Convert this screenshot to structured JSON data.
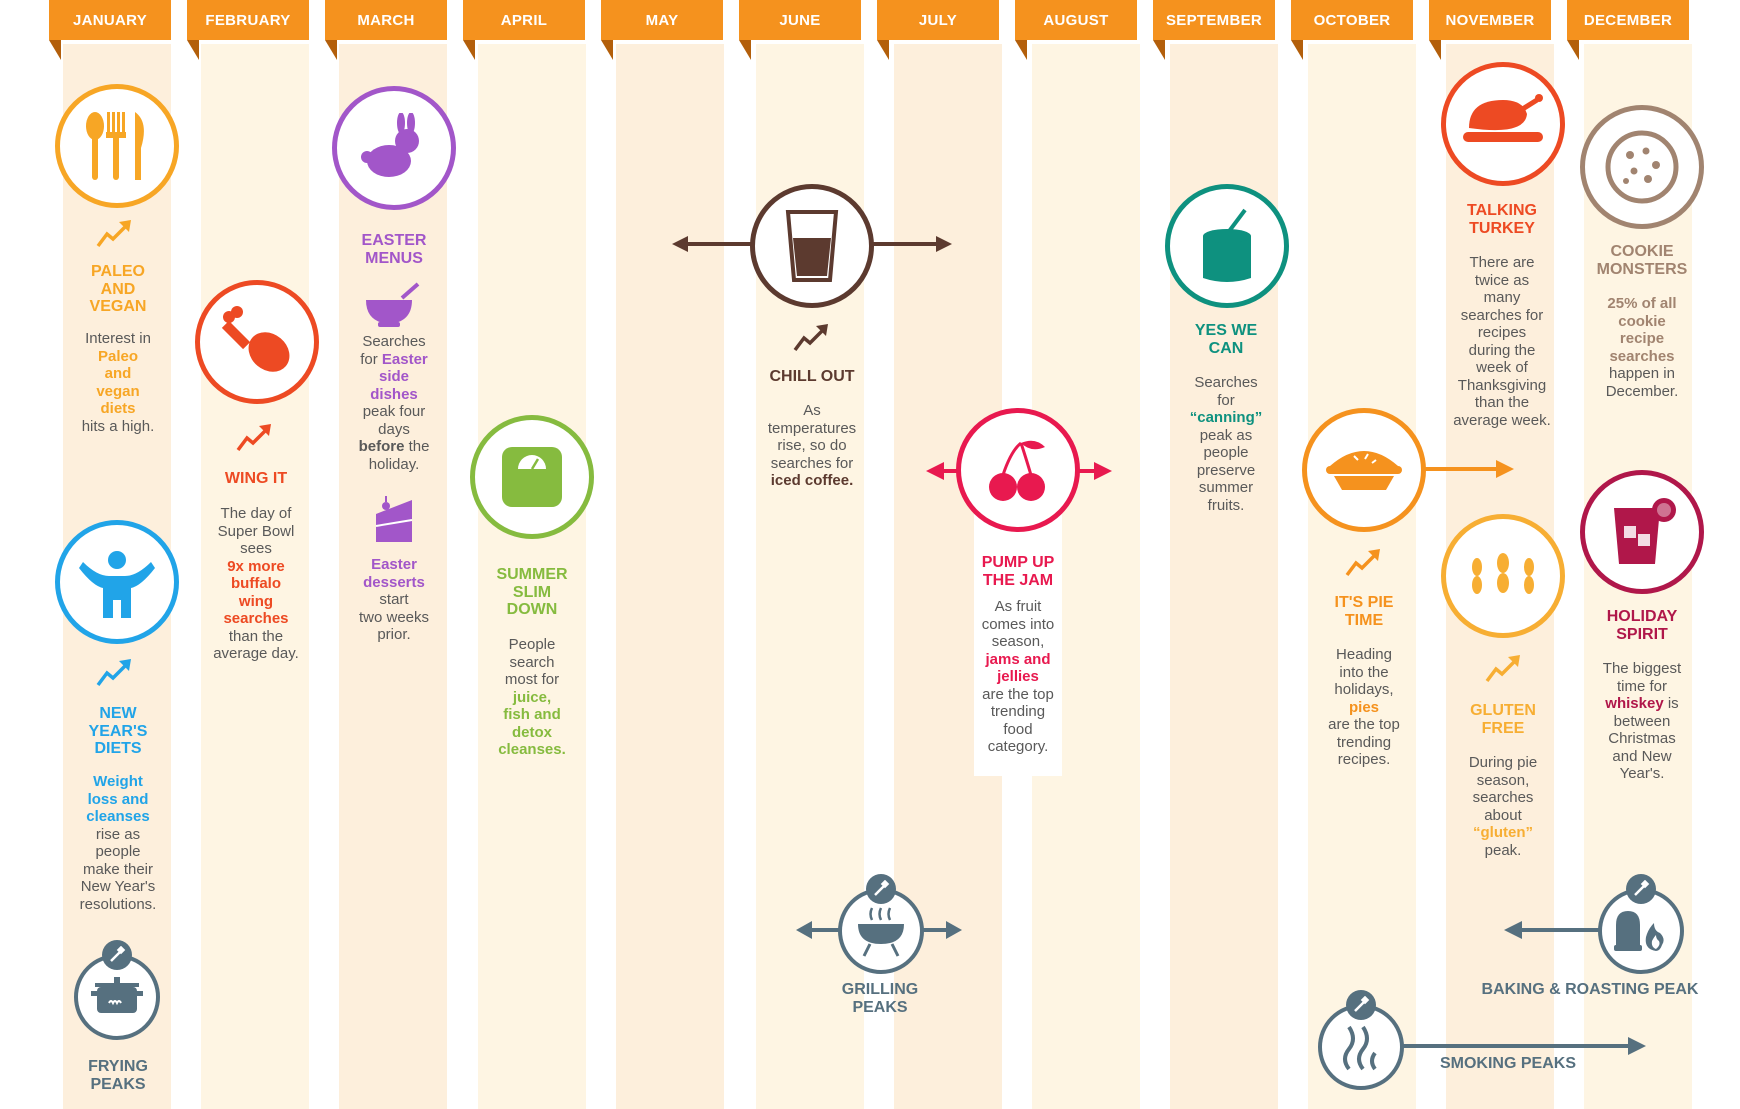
{
  "colors": {
    "orange": "#f5921e",
    "red": "#ed4a23",
    "purple": "#a256c9",
    "green": "#86bb3f",
    "brown": "#5c3a2f",
    "pink": "#e8194f",
    "teal": "#0e917f",
    "yellow": "#f7ae33",
    "tan": "#a18470",
    "maroon": "#b0174a",
    "blue": "#21a4e8",
    "slate": "#56707f"
  },
  "months": [
    "JANUARY",
    "FEBRUARY",
    "MARCH",
    "APRIL",
    "MAY",
    "JUNE",
    "JULY",
    "AUGUST",
    "SEPTEMBER",
    "OCTOBER",
    "NOVEMBER",
    "DECEMBER"
  ],
  "paleo": {
    "title_1": "PALEO",
    "title_2": "AND",
    "title_3": "VEGAN",
    "t1": "Interest in",
    "h1": "Paleo",
    "h2": "and",
    "h3": "vegan",
    "h4": "diets",
    "t2": "hits a high."
  },
  "newyear": {
    "title_1": "NEW",
    "title_2": "YEAR'S",
    "title_3": "DIETS",
    "h1": "Weight",
    "h2": "loss and",
    "h3": "cleanses",
    "t1": "rise as",
    "t2": "people",
    "t3": "make their",
    "t4": "New Year's",
    "t5": "resolutions."
  },
  "frying": {
    "l1": "FRYING",
    "l2": "PEAKS"
  },
  "wing": {
    "title": "WING IT",
    "t1": "The day of",
    "t2": "Super Bowl",
    "t3": "sees",
    "h1": "9x more",
    "h2": "buffalo",
    "h3": "wing",
    "h4": "searches",
    "t4": "than the",
    "t5": "average day."
  },
  "easter": {
    "title_1": "EASTER",
    "title_2": "MENUS",
    "t1": "Searches",
    "t2": "for",
    "h1": "Easter",
    "h2": "side",
    "h3": "dishes",
    "t3": "peak four",
    "t4": "days",
    "h4": "before",
    "t5": "the",
    "t6": "holiday.",
    "h5": "Easter",
    "h6": "desserts",
    "t7": "start",
    "t8": "two weeks",
    "t9": "prior."
  },
  "summer": {
    "title_1": "SUMMER",
    "title_2": "SLIM",
    "title_3": "DOWN",
    "t1": "People",
    "t2": "search",
    "t3": "most for",
    "h1": "juice,",
    "h2": "fish and",
    "h3": "detox",
    "h4": "cleanses."
  },
  "chill": {
    "title": "CHILL OUT",
    "t1": "As",
    "t2": "temperatures",
    "t3": "rise, so do",
    "t4": "searches for",
    "h1": "iced coffee."
  },
  "jam": {
    "title_1": "PUMP UP",
    "title_2": "THE JAM",
    "t1": "As fruit",
    "t2": "comes into",
    "t3": "season,",
    "h1": "jams and",
    "h2": "jellies",
    "t4": "are the top",
    "t5": "trending",
    "t6": "food",
    "t7": "category."
  },
  "grilling": {
    "l1": "GRILLING",
    "l2": "PEAKS"
  },
  "canning": {
    "title_1": "YES WE",
    "title_2": "CAN",
    "t1": "Searches",
    "t2": "for",
    "h1": "“canning”",
    "t3": "peak as",
    "t4": "people",
    "t5": "preserve",
    "t6": "summer",
    "t7": "fruits."
  },
  "pie": {
    "title_1": "IT'S PIE",
    "title_2": "TIME",
    "t1": "Heading",
    "t2": "into the",
    "t3": "holidays,",
    "h1": "pies",
    "t4": "are the top",
    "t5": "trending",
    "t6": "recipes."
  },
  "smoking": {
    "label": "SMOKING PEAKS"
  },
  "turkey": {
    "title_1": "TALKING",
    "title_2": "TURKEY",
    "t1": "There are",
    "t2": "twice as",
    "t3": "many",
    "t4": "searches for",
    "t5": "recipes",
    "t6": "during the",
    "t7": "week of",
    "t8": "Thanksgiving",
    "t9": "than the",
    "t10": "average week."
  },
  "gluten": {
    "title_1": "GLUTEN",
    "title_2": "FREE",
    "t1": "During pie",
    "t2": "season,",
    "t3": "searches",
    "t4": "about",
    "h1": "“gluten”",
    "t5": "peak."
  },
  "baking": {
    "label": "BAKING & ROASTING PEAK"
  },
  "cookie": {
    "title_1": "COOKIE",
    "title_2": "MONSTERS",
    "h1": "25% of all",
    "h2": "cookie",
    "h3": "recipe",
    "h4": "searches",
    "t1": "happen in",
    "t2": "December."
  },
  "holiday": {
    "title_1": "HOLIDAY",
    "title_2": "SPIRIT",
    "t1": "The biggest",
    "t2": "time for",
    "h1": "whiskey",
    "t3": "is",
    "t4": "between",
    "t5": "Christmas",
    "t6": "and New",
    "t7": "Year's."
  }
}
